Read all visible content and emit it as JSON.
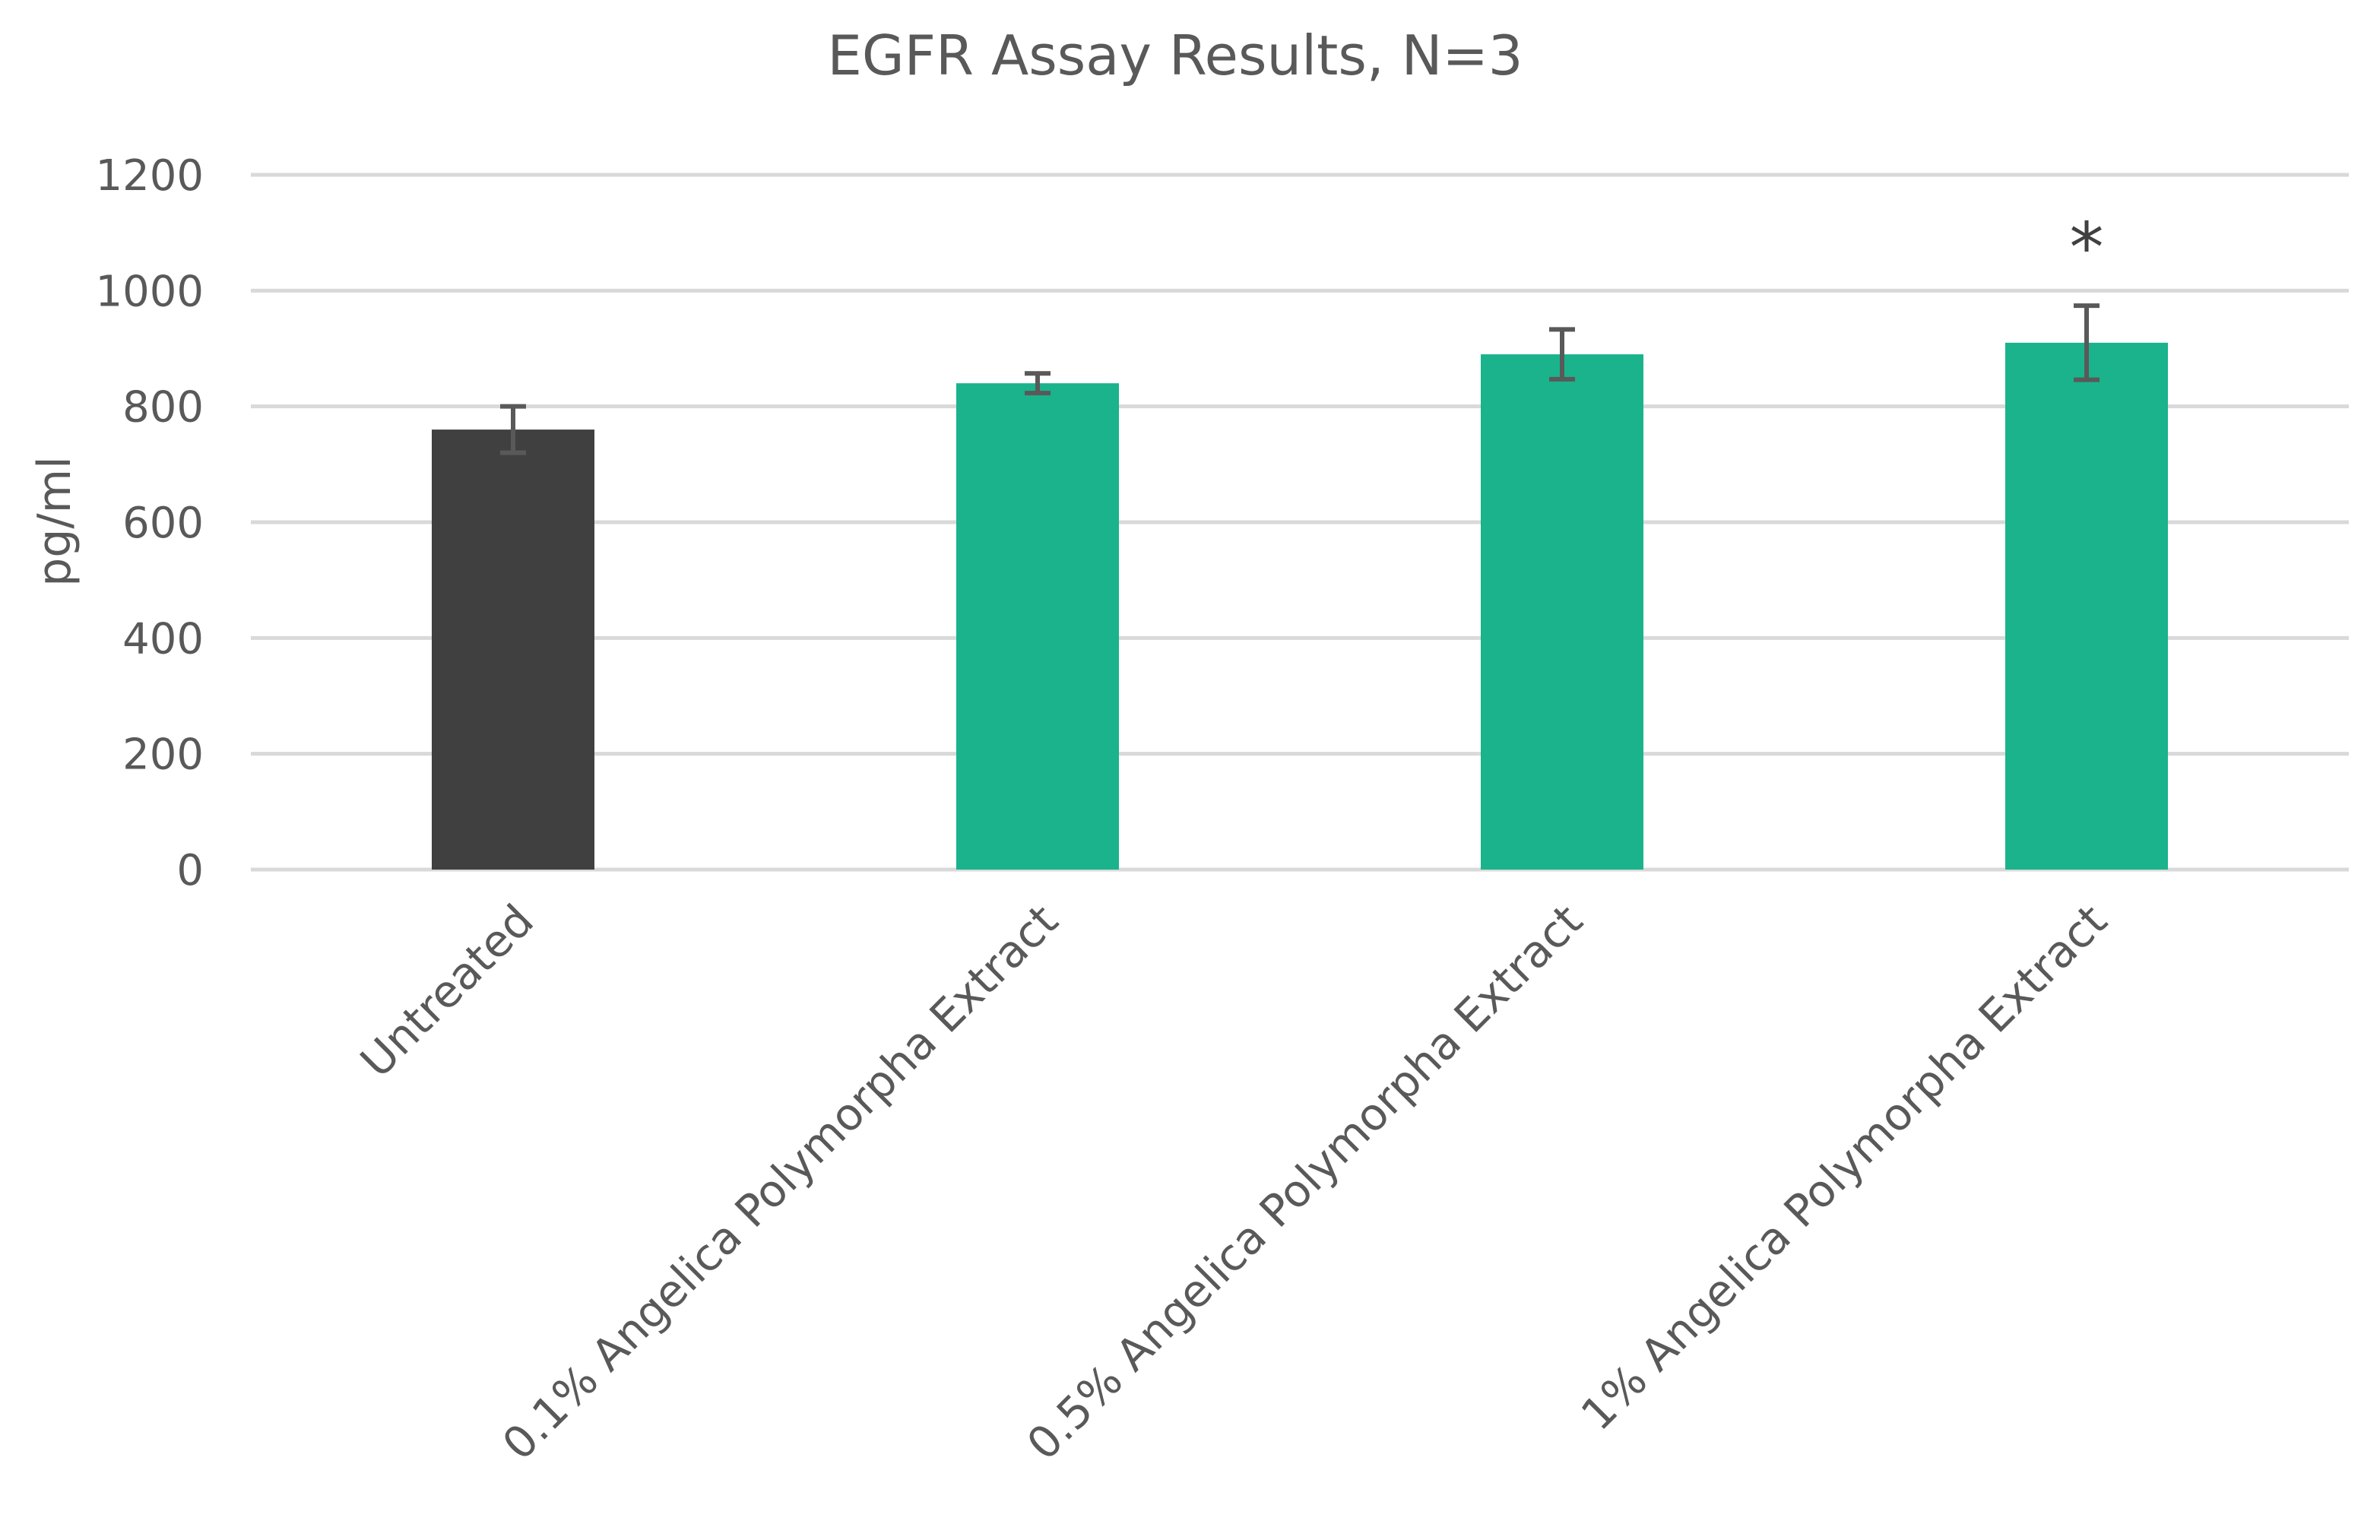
{
  "chart_data": {
    "type": "bar",
    "title": "EGFR Assay Results, N=3",
    "xlabel": "",
    "ylabel": "pg/ml",
    "ylim": [
      0,
      1200
    ],
    "yticks": [
      0,
      200,
      400,
      600,
      800,
      1000,
      1200
    ],
    "grid": true,
    "categories": [
      "Untreated",
      "0.1% Angelica Polymorpha Extract",
      "0.5% Angelica Polymorpha Extract",
      "1% Angelica Polymorpha Extract"
    ],
    "values": [
      760,
      840,
      890,
      910
    ],
    "errors": [
      40,
      17,
      43,
      64
    ],
    "colors": [
      "#404040",
      "#1bb38b",
      "#1bb38b",
      "#1bb38b"
    ],
    "annotations": [
      {
        "category": "1% Angelica Polymorpha Extract",
        "text": "*"
      }
    ]
  }
}
